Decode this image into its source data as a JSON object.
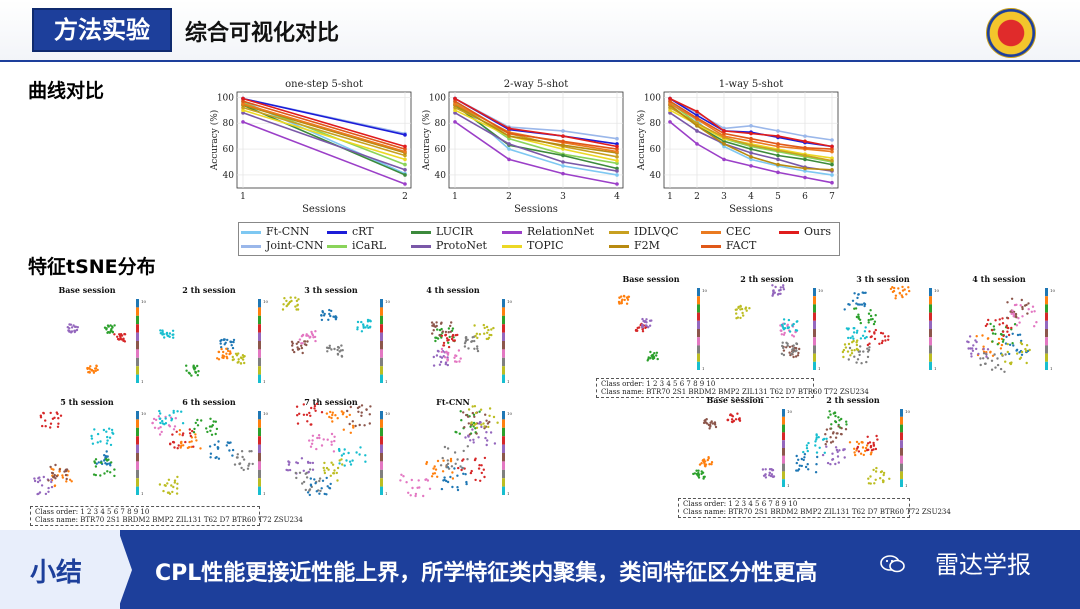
{
  "header": {
    "badge": "方法实验",
    "title": "综合可视化对比"
  },
  "sections": {
    "curves": "曲线对比",
    "tsne": "特征tSNE分布"
  },
  "chart_data": [
    {
      "type": "line",
      "title": "one-step 5-shot",
      "xlabel": "Sessions",
      "ylabel": "Accuracy (%)",
      "x": [
        1,
        2
      ],
      "xticks": [
        "1",
        "2"
      ],
      "ylim": [
        33,
        101
      ],
      "yticks": [
        40,
        60,
        80,
        100
      ],
      "series": [
        {
          "name": "Ft-CNN",
          "color": "#7ec8f2",
          "values": [
            97,
            41
          ]
        },
        {
          "name": "Joint-CNN",
          "color": "#9ab7ea",
          "values": [
            99,
            72
          ]
        },
        {
          "name": "cRT",
          "color": "#1c1cd8",
          "values": [
            99,
            71
          ]
        },
        {
          "name": "iCaRL",
          "color": "#8ad45a",
          "values": [
            96,
            48
          ]
        },
        {
          "name": "LUCIR",
          "color": "#3c8a3c",
          "values": [
            94,
            40
          ]
        },
        {
          "name": "ProtoNet",
          "color": "#7a58a8",
          "values": [
            88,
            44
          ]
        },
        {
          "name": "RelationNet",
          "color": "#9b3fc8",
          "values": [
            81,
            33
          ]
        },
        {
          "name": "TOPIC",
          "color": "#ecd824",
          "values": [
            90,
            52
          ]
        },
        {
          "name": "IDLVQC",
          "color": "#c8a020",
          "values": [
            92,
            55
          ]
        },
        {
          "name": "F2M",
          "color": "#b88a10",
          "values": [
            94,
            57
          ]
        },
        {
          "name": "CEC",
          "color": "#ea7a20",
          "values": [
            95,
            58
          ]
        },
        {
          "name": "FACT",
          "color": "#e05818",
          "values": [
            97,
            60
          ]
        },
        {
          "name": "Ours",
          "color": "#e01c1c",
          "values": [
            99,
            62
          ]
        }
      ]
    },
    {
      "type": "line",
      "title": "2-way 5-shot",
      "xlabel": "Sessions",
      "ylabel": "Accuracy (%)",
      "x": [
        1,
        2,
        3,
        4
      ],
      "xticks": [
        "1",
        "2",
        "3",
        "4"
      ],
      "ylim": [
        33,
        101
      ],
      "yticks": [
        40,
        60,
        80,
        100
      ],
      "series": [
        {
          "name": "Ft-CNN",
          "color": "#7ec8f2",
          "values": [
            97,
            60,
            47,
            40
          ]
        },
        {
          "name": "Joint-CNN",
          "color": "#9ab7ea",
          "values": [
            99,
            77,
            74,
            68
          ]
        },
        {
          "name": "cRT",
          "color": "#1c1cd8",
          "values": [
            99,
            75,
            70,
            64
          ]
        },
        {
          "name": "iCaRL",
          "color": "#8ad45a",
          "values": [
            96,
            68,
            56,
            49
          ]
        },
        {
          "name": "LUCIR",
          "color": "#3c8a3c",
          "values": [
            94,
            63,
            55,
            45
          ]
        },
        {
          "name": "ProtoNet",
          "color": "#7a58a8",
          "values": [
            88,
            64,
            50,
            43
          ]
        },
        {
          "name": "RelationNet",
          "color": "#9b3fc8",
          "values": [
            81,
            52,
            41,
            33
          ]
        },
        {
          "name": "TOPIC",
          "color": "#ecd824",
          "values": [
            90,
            70,
            60,
            51
          ]
        },
        {
          "name": "IDLVQC",
          "color": "#c8a020",
          "values": [
            92,
            72,
            62,
            54
          ]
        },
        {
          "name": "F2M",
          "color": "#b88a10",
          "values": [
            94,
            70,
            63,
            57
          ]
        },
        {
          "name": "CEC",
          "color": "#ea7a20",
          "values": [
            95,
            73,
            65,
            58
          ]
        },
        {
          "name": "FACT",
          "color": "#e05818",
          "values": [
            97,
            72,
            66,
            60
          ]
        },
        {
          "name": "Ours",
          "color": "#e01c1c",
          "values": [
            99,
            76,
            70,
            62
          ]
        }
      ]
    },
    {
      "type": "line",
      "title": "1-way 5-shot",
      "xlabel": "Sessions",
      "ylabel": "Accuracy (%)",
      "x": [
        1,
        2,
        3,
        4,
        5,
        6,
        7
      ],
      "xticks": [
        "1",
        "2",
        "3",
        "4",
        "5",
        "6",
        "7"
      ],
      "ylim": [
        33,
        101
      ],
      "yticks": [
        40,
        60,
        80,
        100
      ],
      "series": [
        {
          "name": "Ft-CNN",
          "color": "#7ec8f2",
          "values": [
            97,
            82,
            62,
            52,
            47,
            43,
            40
          ]
        },
        {
          "name": "Joint-CNN",
          "color": "#9ab7ea",
          "values": [
            99,
            88,
            76,
            78,
            74,
            70,
            67
          ]
        },
        {
          "name": "cRT",
          "color": "#1c1cd8",
          "values": [
            99,
            86,
            74,
            73,
            69,
            65,
            62
          ]
        },
        {
          "name": "iCaRL",
          "color": "#8ad45a",
          "values": [
            96,
            80,
            68,
            62,
            58,
            54,
            50
          ]
        },
        {
          "name": "LUCIR",
          "color": "#3c8a3c",
          "values": [
            94,
            78,
            66,
            60,
            55,
            52,
            48
          ]
        },
        {
          "name": "ProtoNet",
          "color": "#7a58a8",
          "values": [
            88,
            74,
            64,
            57,
            52,
            46,
            43
          ]
        },
        {
          "name": "RelationNet",
          "color": "#9b3fc8",
          "values": [
            81,
            64,
            52,
            47,
            42,
            38,
            34
          ]
        },
        {
          "name": "TOPIC",
          "color": "#ecd824",
          "values": [
            90,
            79,
            68,
            64,
            60,
            56,
            53
          ]
        },
        {
          "name": "IDLVQC",
          "color": "#c8a020",
          "values": [
            92,
            80,
            69,
            63,
            59,
            55,
            51
          ]
        },
        {
          "name": "F2M",
          "color": "#b88a10",
          "values": [
            94,
            78,
            64,
            54,
            48,
            45,
            44
          ]
        },
        {
          "name": "CEC",
          "color": "#ea7a20",
          "values": [
            95,
            83,
            70,
            66,
            62,
            60,
            58
          ]
        },
        {
          "name": "FACT",
          "color": "#e05818",
          "values": [
            97,
            84,
            72,
            68,
            64,
            61,
            60
          ]
        },
        {
          "name": "Ours",
          "color": "#e01c1c",
          "values": [
            99,
            89,
            74,
            72,
            70,
            66,
            62
          ]
        }
      ]
    }
  ],
  "legend": [
    {
      "label": "Ft-CNN",
      "color": "#7ec8f2"
    },
    {
      "label": "cRT",
      "color": "#1c1cd8"
    },
    {
      "label": "LUCIR",
      "color": "#3c8a3c"
    },
    {
      "label": "RelationNet",
      "color": "#9b3fc8"
    },
    {
      "label": "IDLVQC",
      "color": "#c8a020"
    },
    {
      "label": "CEC",
      "color": "#ea7a20"
    },
    {
      "label": "Ours",
      "color": "#e01c1c"
    },
    {
      "label": "Joint-CNN",
      "color": "#9ab7ea"
    },
    {
      "label": "iCaRL",
      "color": "#8ad45a"
    },
    {
      "label": "ProtoNet",
      "color": "#7a58a8"
    },
    {
      "label": "TOPIC",
      "color": "#ecd824"
    },
    {
      "label": "F2M",
      "color": "#b88a10"
    },
    {
      "label": "FACT",
      "color": "#e05818"
    }
  ],
  "tsne": {
    "left_panels": [
      {
        "title": "Base session"
      },
      {
        "title": "2 th session"
      },
      {
        "title": "3 th session"
      },
      {
        "title": "4 th session"
      },
      {
        "title": "5 th session"
      },
      {
        "title": "6 th session"
      },
      {
        "title": "7 th session"
      },
      {
        "title": "Ft-CNN"
      }
    ],
    "right_panels": [
      {
        "title": "Base session"
      },
      {
        "title": "2 th session"
      },
      {
        "title": "3 th session"
      },
      {
        "title": "4 th session"
      },
      {
        "title": "Base session"
      },
      {
        "title": "2 th session"
      }
    ],
    "colorbar_ticks": [
      "10",
      "9",
      "8",
      "7",
      "6",
      "5",
      "4",
      "3",
      "2",
      "1"
    ],
    "class_box_left": {
      "order_label": "Class order:",
      "order": "1     2     3     4     5     6     7     8     9    10",
      "name_label": "Class name:",
      "names": "BTR70  2S1  BRDM2  BMP2  ZIL131  T62  D7  BTR60  T72  ZSU234"
    },
    "class_box_right_top": {
      "order_label": "Class order:",
      "order": "1     2     3     4     5     6     7     8     9    10",
      "name_label": "Class name:",
      "names": "BTR70  2S1  BRDM2  BMP2  ZIL131  T62  D7  BTR60  T72  ZSU234"
    },
    "class_box_right_bottom": {
      "order_label": "Class order:",
      "order": "1     2     3     4     5     6     7     8     9    10",
      "name_label": "Class name:",
      "names": "BTR70  2S1  BRDM2  BMP2  ZIL131  T62  D7  BTR60  T72  ZSU234"
    },
    "class_colors": [
      "#1f77b4",
      "#ff7f0e",
      "#2ca02c",
      "#d62728",
      "#9467bd",
      "#8c564b",
      "#e377c2",
      "#7f7f7f",
      "#bcbd22",
      "#17becf"
    ]
  },
  "footer": {
    "label": "小结",
    "text": "CPL性能更接近性能上界，所学特征类内聚集，类间特征区分性更高",
    "brand": "雷达学报"
  },
  "icons": {
    "emblem": "university-emblem-icon",
    "wechat": "wechat-icon"
  }
}
